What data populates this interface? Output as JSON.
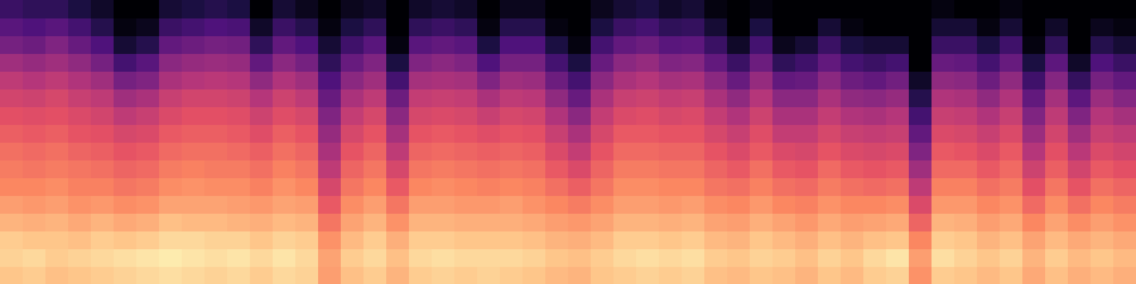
{
  "chart_data": {
    "type": "heatmap",
    "tick_labels": false,
    "zlim": [
      -80,
      0
    ],
    "cells": [
      [
        -9,
        -7,
        -8,
        -12,
        -16,
        -20,
        -22,
        -24,
        -27,
        -30,
        -34,
        -38,
        -44,
        -52,
        -58,
        -64
      ],
      [
        -8,
        -6,
        -9,
        -13,
        -17,
        -20,
        -23,
        -25,
        -28,
        -31,
        -35,
        -40,
        -46,
        -54,
        -60,
        -66
      ],
      [
        -10,
        -8,
        -9,
        -12,
        -16,
        -19,
        -22,
        -24,
        -27,
        -30,
        -33,
        -38,
        -44,
        -50,
        -58,
        -66
      ],
      [
        -9,
        -7,
        -10,
        -14,
        -18,
        -21,
        -23,
        -26,
        -29,
        -32,
        -36,
        -41,
        -47,
        -55,
        -62,
        -70
      ],
      [
        -8,
        -6,
        -8,
        -12,
        -17,
        -21,
        -24,
        -27,
        -30,
        -34,
        -38,
        -44,
        -52,
        -60,
        -68,
        -74
      ],
      [
        -7,
        -5,
        -9,
        -14,
        -19,
        -23,
        -26,
        -29,
        -33,
        -38,
        -44,
        -52,
        -62,
        -72,
        -78,
        -80
      ],
      [
        -6,
        -4,
        -8,
        -13,
        -18,
        -22,
        -25,
        -28,
        -32,
        -36,
        -42,
        -50,
        -58,
        -68,
        -76,
        -80
      ],
      [
        -5,
        -3,
        -6,
        -10,
        -15,
        -19,
        -22,
        -25,
        -28,
        -32,
        -36,
        -42,
        -48,
        -56,
        -64,
        -72
      ],
      [
        -6,
        -4,
        -6,
        -11,
        -15,
        -18,
        -21,
        -24,
        -27,
        -30,
        -34,
        -40,
        -46,
        -54,
        -62,
        -70
      ],
      [
        -7,
        -5,
        -7,
        -11,
        -15,
        -19,
        -22,
        -24,
        -27,
        -30,
        -34,
        -39,
        -45,
        -52,
        -60,
        -68
      ],
      [
        -6,
        -4,
        -7,
        -12,
        -16,
        -19,
        -22,
        -25,
        -28,
        -31,
        -35,
        -40,
        -46,
        -53,
        -61,
        -70
      ],
      [
        -8,
        -6,
        -9,
        -13,
        -17,
        -21,
        -24,
        -27,
        -31,
        -35,
        -40,
        -47,
        -56,
        -66,
        -74,
        -80
      ],
      [
        -6,
        -4,
        -7,
        -11,
        -15,
        -18,
        -21,
        -24,
        -27,
        -31,
        -35,
        -41,
        -48,
        -56,
        -64,
        -72
      ],
      [
        -7,
        -6,
        -8,
        -12,
        -16,
        -20,
        -23,
        -26,
        -29,
        -33,
        -38,
        -44,
        -52,
        -60,
        -68,
        -76
      ],
      [
        -16,
        -15,
        -18,
        -23,
        -28,
        -33,
        -38,
        -42,
        -46,
        -50,
        -55,
        -60,
        -66,
        -72,
        -78,
        -80
      ],
      [
        -10,
        -8,
        -11,
        -15,
        -19,
        -23,
        -26,
        -29,
        -33,
        -37,
        -42,
        -48,
        -55,
        -63,
        -70,
        -76
      ],
      [
        -8,
        -6,
        -8,
        -12,
        -16,
        -20,
        -23,
        -26,
        -29,
        -33,
        -38,
        -44,
        -50,
        -58,
        -66,
        -74
      ],
      [
        -12,
        -10,
        -13,
        -18,
        -23,
        -28,
        -33,
        -38,
        -43,
        -48,
        -54,
        -62,
        -70,
        -78,
        -80,
        -80
      ],
      [
        -8,
        -6,
        -8,
        -12,
        -16,
        -20,
        -23,
        -26,
        -29,
        -33,
        -37,
        -43,
        -50,
        -58,
        -66,
        -74
      ],
      [
        -7,
        -5,
        -8,
        -12,
        -16,
        -19,
        -22,
        -25,
        -28,
        -32,
        -36,
        -42,
        -48,
        -56,
        -64,
        -72
      ],
      [
        -8,
        -6,
        -9,
        -13,
        -17,
        -20,
        -23,
        -26,
        -29,
        -33,
        -37,
        -43,
        -50,
        -58,
        -66,
        -74
      ],
      [
        -7,
        -6,
        -9,
        -13,
        -17,
        -21,
        -24,
        -27,
        -31,
        -36,
        -42,
        -50,
        -60,
        -70,
        -78,
        -80
      ],
      [
        -8,
        -6,
        -9,
        -13,
        -16,
        -20,
        -23,
        -26,
        -29,
        -33,
        -38,
        -44,
        -52,
        -60,
        -68,
        -76
      ],
      [
        -9,
        -7,
        -10,
        -14,
        -18,
        -21,
        -24,
        -27,
        -30,
        -34,
        -39,
        -45,
        -52,
        -60,
        -68,
        -76
      ],
      [
        -11,
        -9,
        -12,
        -16,
        -20,
        -24,
        -28,
        -32,
        -36,
        -41,
        -47,
        -54,
        -62,
        -70,
        -78,
        -80
      ],
      [
        -12,
        -10,
        -13,
        -17,
        -22,
        -27,
        -32,
        -37,
        -42,
        -48,
        -55,
        -62,
        -70,
        -78,
        -80,
        -80
      ],
      [
        -9,
        -8,
        -11,
        -15,
        -19,
        -23,
        -26,
        -29,
        -33,
        -37,
        -42,
        -48,
        -55,
        -62,
        -70,
        -76
      ],
      [
        -8,
        -6,
        -8,
        -12,
        -16,
        -19,
        -22,
        -25,
        -28,
        -32,
        -36,
        -42,
        -48,
        -56,
        -64,
        -72
      ],
      [
        -7,
        -5,
        -8,
        -12,
        -16,
        -19,
        -22,
        -25,
        -28,
        -31,
        -35,
        -40,
        -46,
        -54,
        -62,
        -70
      ],
      [
        -8,
        -6,
        -9,
        -13,
        -17,
        -20,
        -23,
        -26,
        -29,
        -33,
        -37,
        -43,
        -50,
        -58,
        -66,
        -74
      ],
      [
        -7,
        -5,
        -8,
        -12,
        -16,
        -20,
        -23,
        -26,
        -29,
        -32,
        -36,
        -42,
        -49,
        -57,
        -65,
        -72
      ],
      [
        -10,
        -8,
        -11,
        -15,
        -19,
        -23,
        -26,
        -29,
        -33,
        -37,
        -42,
        -48,
        -56,
        -64,
        -72,
        -78
      ],
      [
        -11,
        -9,
        -12,
        -16,
        -20,
        -24,
        -28,
        -32,
        -36,
        -41,
        -47,
        -55,
        -64,
        -74,
        -80,
        -80
      ],
      [
        -9,
        -7,
        -9,
        -13,
        -17,
        -21,
        -24,
        -28,
        -31,
        -35,
        -40,
        -46,
        -54,
        -62,
        -70,
        -78
      ],
      [
        -10,
        -8,
        -11,
        -15,
        -20,
        -24,
        -28,
        -32,
        -37,
        -42,
        -48,
        -56,
        -66,
        -76,
        -80,
        -80
      ],
      [
        -12,
        -10,
        -13,
        -17,
        -21,
        -25,
        -29,
        -33,
        -37,
        -42,
        -48,
        -55,
        -63,
        -72,
        -80,
        -80
      ],
      [
        -9,
        -7,
        -10,
        -14,
        -18,
        -22,
        -25,
        -29,
        -33,
        -37,
        -42,
        -48,
        -56,
        -64,
        -72,
        -80
      ],
      [
        -11,
        -9,
        -12,
        -16,
        -20,
        -24,
        -28,
        -32,
        -36,
        -41,
        -47,
        -54,
        -62,
        -70,
        -78,
        -80
      ],
      [
        -8,
        -6,
        -10,
        -15,
        -20,
        -25,
        -29,
        -33,
        -37,
        -42,
        -48,
        -56,
        -64,
        -72,
        -80,
        -80
      ],
      [
        -7,
        -4,
        -9,
        -14,
        -19,
        -24,
        -28,
        -32,
        -36,
        -40,
        -46,
        -53,
        -62,
        -72,
        -80,
        -80
      ],
      [
        -18,
        -16,
        -20,
        -26,
        -32,
        -38,
        -44,
        -50,
        -56,
        -62,
        -68,
        -74,
        -80,
        -80,
        -80,
        -80
      ],
      [
        -8,
        -5,
        -8,
        -12,
        -17,
        -21,
        -25,
        -28,
        -32,
        -36,
        -41,
        -47,
        -55,
        -64,
        -72,
        -78
      ],
      [
        -9,
        -7,
        -9,
        -13,
        -17,
        -21,
        -25,
        -29,
        -33,
        -37,
        -42,
        -48,
        -56,
        -64,
        -72,
        -80
      ],
      [
        -11,
        -9,
        -12,
        -16,
        -20,
        -24,
        -28,
        -32,
        -36,
        -41,
        -47,
        -54,
        -62,
        -70,
        -78,
        -80
      ],
      [
        -9,
        -7,
        -10,
        -14,
        -18,
        -22,
        -25,
        -28,
        -32,
        -36,
        -41,
        -47,
        -55,
        -63,
        -72,
        -78
      ],
      [
        -14,
        -12,
        -15,
        -20,
        -25,
        -30,
        -35,
        -40,
        -45,
        -50,
        -56,
        -63,
        -70,
        -78,
        -80,
        -80
      ],
      [
        -10,
        -8,
        -11,
        -15,
        -19,
        -23,
        -27,
        -30,
        -34,
        -38,
        -43,
        -49,
        -57,
        -66,
        -74,
        -80
      ],
      [
        -13,
        -11,
        -14,
        -19,
        -24,
        -29,
        -34,
        -39,
        -44,
        -50,
        -57,
        -65,
        -74,
        -80,
        -80,
        -80
      ],
      [
        -11,
        -9,
        -12,
        -16,
        -20,
        -24,
        -28,
        -32,
        -36,
        -40,
        -45,
        -52,
        -60,
        -68,
        -76,
        -80
      ],
      [
        -13,
        -11,
        -14,
        -18,
        -22,
        -26,
        -30,
        -34,
        -38,
        -43,
        -49,
        -56,
        -64,
        -72,
        -78,
        -80
      ]
    ]
  }
}
